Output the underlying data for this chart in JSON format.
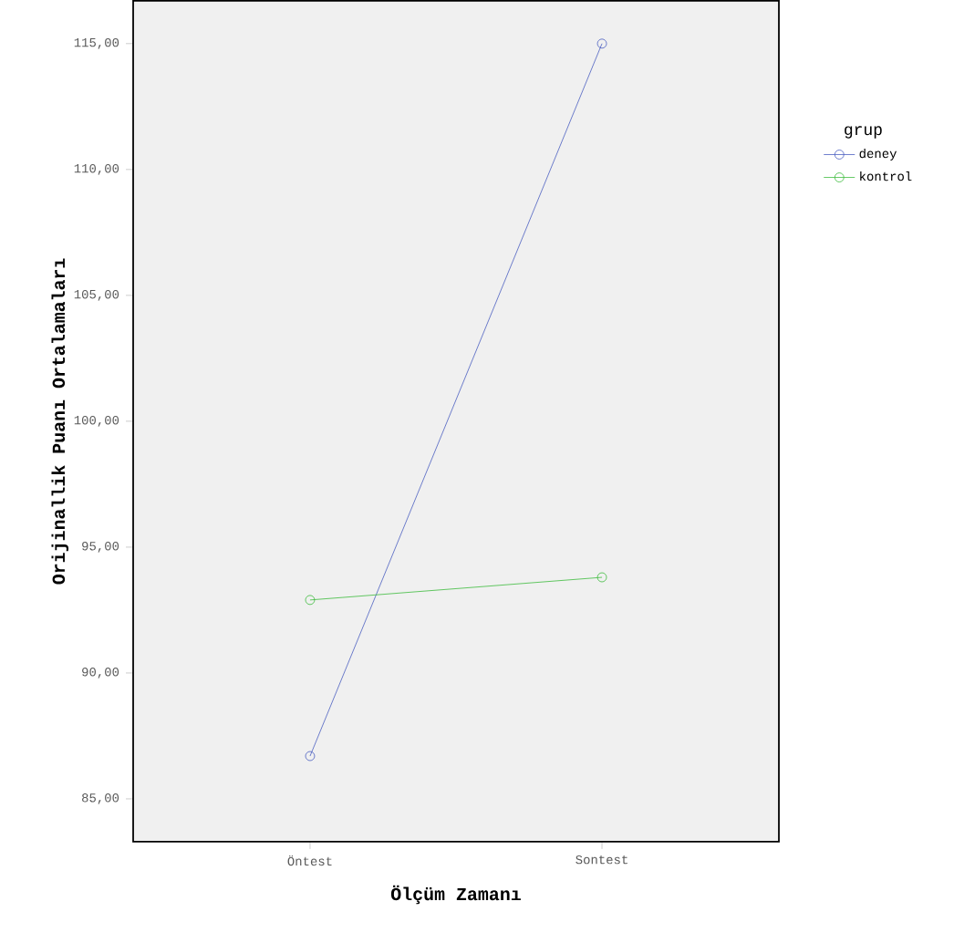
{
  "chart_data": {
    "type": "line",
    "xlabel": "Ölçüm Zamanı",
    "ylabel": "Orijinallik Puanı Ortalamaları",
    "categories": [
      "Öntest",
      "Sontest"
    ],
    "series": [
      {
        "name": "deney",
        "color": "#4a5ec0",
        "values": [
          86.7,
          115.0
        ]
      },
      {
        "name": "kontrol",
        "color": "#3cbb3c",
        "values": [
          92.9,
          93.8
        ]
      }
    ],
    "ylim": [
      83.3,
      116.7
    ],
    "yticks": [
      {
        "value": 85,
        "label": "85,00"
      },
      {
        "value": 90,
        "label": "90,00"
      },
      {
        "value": 95,
        "label": "95,00"
      },
      {
        "value": 100,
        "label": "100,00"
      },
      {
        "value": 105,
        "label": "105,00"
      },
      {
        "value": 110,
        "label": "110,00"
      },
      {
        "value": 115,
        "label": "115,00"
      }
    ],
    "legend_title": "grup",
    "legend": "right",
    "marker": "circle",
    "line_style": "solid",
    "grid": false
  }
}
